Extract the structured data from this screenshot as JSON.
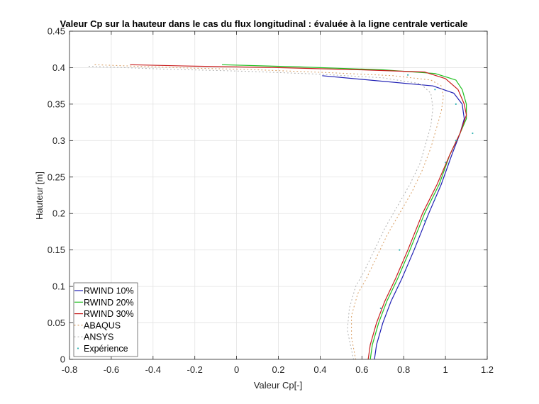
{
  "chart_data": {
    "type": "line",
    "title": "Valeur Cp sur la hauteur dans le cas du flux longitudinal : évaluée à la ligne centrale verticale",
    "xlabel": "Valeur Cp[-]",
    "ylabel": "Hauteur [m]",
    "xlim": [
      -0.8,
      1.2
    ],
    "ylim": [
      0,
      0.45
    ],
    "xticks": [
      -0.8,
      -0.6,
      -0.4,
      -0.2,
      0,
      0.2,
      0.4,
      0.6,
      0.8,
      1,
      1.2
    ],
    "yticks": [
      0,
      0.05,
      0.1,
      0.15,
      0.2,
      0.25,
      0.3,
      0.35,
      0.4,
      0.45
    ],
    "xtick_labels": [
      "-0.8",
      "-0.6",
      "-0.4",
      "-0.2",
      "0",
      "0.2",
      "0.4",
      "0.6",
      "0.8",
      "1",
      "1.2"
    ],
    "ytick_labels": [
      "0",
      "0.05",
      "0.1",
      "0.15",
      "0.2",
      "0.25",
      "0.3",
      "0.35",
      "0.4",
      "0.45"
    ],
    "grid": true,
    "legend_position": "bottom-left",
    "series": [
      {
        "name": "RWIND 10%",
        "color": "#1f1fb4",
        "style": "solid",
        "x": [
          0.66,
          0.67,
          0.7,
          0.74,
          0.79,
          0.85,
          0.92,
          0.98,
          1.03,
          1.07,
          1.09,
          1.08,
          1.04,
          0.94,
          0.41
        ],
        "y": [
          0.0,
          0.02,
          0.05,
          0.08,
          0.11,
          0.15,
          0.2,
          0.24,
          0.28,
          0.31,
          0.33,
          0.35,
          0.365,
          0.375,
          0.389
        ]
      },
      {
        "name": "RWIND 20%",
        "color": "#20c020",
        "style": "solid",
        "x": [
          0.64,
          0.65,
          0.68,
          0.72,
          0.77,
          0.83,
          0.9,
          0.97,
          1.02,
          1.07,
          1.1,
          1.1,
          1.08,
          1.05,
          0.95,
          0.7,
          0.3,
          -0.07
        ],
        "y": [
          0.0,
          0.02,
          0.05,
          0.08,
          0.11,
          0.15,
          0.2,
          0.24,
          0.28,
          0.31,
          0.33,
          0.35,
          0.37,
          0.383,
          0.392,
          0.397,
          0.401,
          0.404
        ]
      },
      {
        "name": "RWIND 30%",
        "color": "#c81e1e",
        "style": "solid",
        "x": [
          0.63,
          0.64,
          0.67,
          0.71,
          0.76,
          0.82,
          0.89,
          0.96,
          1.02,
          1.07,
          1.1,
          1.09,
          1.06,
          1.0,
          0.9,
          0.6,
          0.2,
          -0.2,
          -0.51
        ],
        "y": [
          0.0,
          0.02,
          0.05,
          0.08,
          0.11,
          0.15,
          0.2,
          0.24,
          0.28,
          0.31,
          0.335,
          0.35,
          0.37,
          0.385,
          0.394,
          0.397,
          0.4,
          0.402,
          0.404
        ]
      },
      {
        "name": "ABAQUS",
        "color": "#d9a066",
        "style": "dotted",
        "x": [
          0.57,
          0.55,
          0.55,
          0.58,
          0.62,
          0.67,
          0.72,
          0.78,
          0.84,
          0.89,
          0.93,
          0.96,
          0.98,
          0.99,
          0.98,
          0.93,
          0.75,
          0.45,
          0.1,
          -0.3,
          -0.68
        ],
        "y": [
          0.0,
          0.03,
          0.06,
          0.09,
          0.11,
          0.14,
          0.17,
          0.2,
          0.23,
          0.26,
          0.29,
          0.32,
          0.34,
          0.36,
          0.375,
          0.383,
          0.389,
          0.393,
          0.397,
          0.4,
          0.404
        ]
      },
      {
        "name": "ANSYS",
        "color": "#b3b3b3",
        "style": "dotted",
        "x": [
          0.56,
          0.53,
          0.54,
          0.57,
          0.61,
          0.66,
          0.71,
          0.77,
          0.83,
          0.88,
          0.91,
          0.93,
          0.94,
          0.93,
          0.88,
          0.7,
          0.4,
          0.05,
          -0.35,
          -0.72
        ],
        "y": [
          0.0,
          0.04,
          0.07,
          0.1,
          0.12,
          0.15,
          0.18,
          0.21,
          0.24,
          0.27,
          0.3,
          0.32,
          0.345,
          0.365,
          0.378,
          0.386,
          0.391,
          0.395,
          0.398,
          0.402
        ]
      },
      {
        "name": "Expérience",
        "color": "#33b3b3",
        "style": "markers",
        "x": [
          0.69,
          0.78,
          0.9,
          0.95,
          1.0,
          1.05,
          1.13,
          1.05,
          0.95,
          0.82
        ],
        "y": [
          0.07,
          0.15,
          0.19,
          0.22,
          0.27,
          0.3,
          0.31,
          0.35,
          0.37,
          0.39
        ]
      }
    ]
  }
}
